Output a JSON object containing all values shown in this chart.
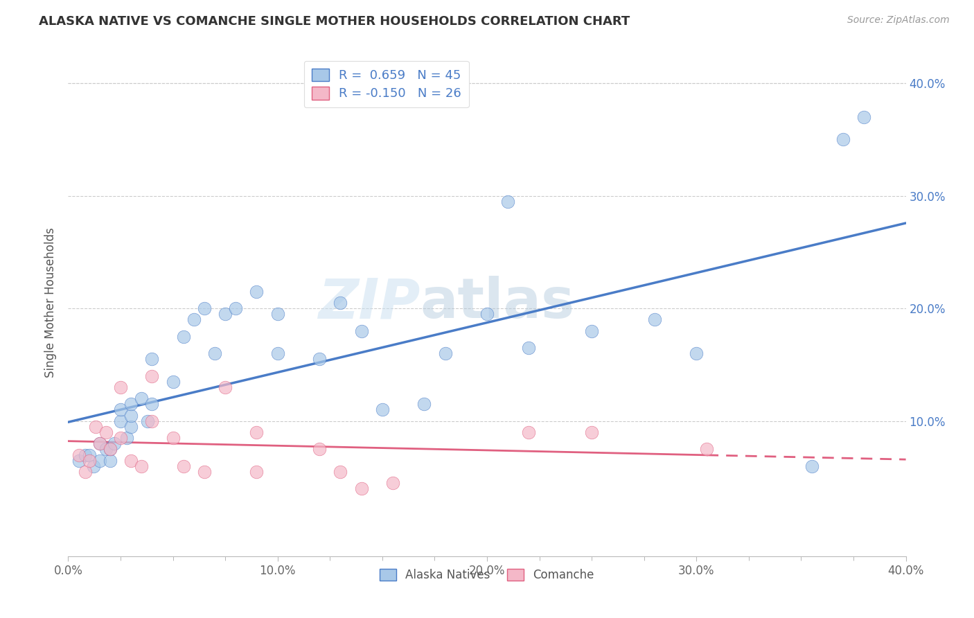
{
  "title": "ALASKA NATIVE VS COMANCHE SINGLE MOTHER HOUSEHOLDS CORRELATION CHART",
  "source": "Source: ZipAtlas.com",
  "ylabel": "Single Mother Households",
  "xlim": [
    0.0,
    0.4
  ],
  "ylim": [
    -0.02,
    0.43
  ],
  "ytick_vals": [
    0.0,
    0.1,
    0.2,
    0.3,
    0.4
  ],
  "alaska_color": "#a8c8e8",
  "alaska_line_color": "#4a7cc7",
  "comanche_color": "#f4b8c8",
  "comanche_line_color": "#e06080",
  "legend_R_alaska": "R =  0.659   N = 45",
  "legend_R_comanche": "R = -0.150   N = 26",
  "watermark_zip": "ZIP",
  "watermark_atlas": "atlas",
  "alaska_scatter_x": [
    0.005,
    0.008,
    0.01,
    0.012,
    0.015,
    0.015,
    0.018,
    0.02,
    0.02,
    0.022,
    0.025,
    0.025,
    0.028,
    0.03,
    0.03,
    0.03,
    0.035,
    0.038,
    0.04,
    0.04,
    0.05,
    0.055,
    0.06,
    0.065,
    0.07,
    0.075,
    0.08,
    0.09,
    0.1,
    0.1,
    0.12,
    0.13,
    0.14,
    0.15,
    0.17,
    0.18,
    0.2,
    0.21,
    0.22,
    0.25,
    0.28,
    0.3,
    0.355,
    0.37,
    0.38
  ],
  "alaska_scatter_y": [
    0.065,
    0.07,
    0.07,
    0.06,
    0.065,
    0.08,
    0.075,
    0.065,
    0.075,
    0.08,
    0.1,
    0.11,
    0.085,
    0.095,
    0.105,
    0.115,
    0.12,
    0.1,
    0.115,
    0.155,
    0.135,
    0.175,
    0.19,
    0.2,
    0.16,
    0.195,
    0.2,
    0.215,
    0.16,
    0.195,
    0.155,
    0.205,
    0.18,
    0.11,
    0.115,
    0.16,
    0.195,
    0.295,
    0.165,
    0.18,
    0.19,
    0.16,
    0.06,
    0.35,
    0.37
  ],
  "comanche_scatter_x": [
    0.005,
    0.008,
    0.01,
    0.013,
    0.015,
    0.018,
    0.02,
    0.025,
    0.025,
    0.03,
    0.035,
    0.04,
    0.04,
    0.05,
    0.055,
    0.065,
    0.075,
    0.09,
    0.09,
    0.12,
    0.13,
    0.14,
    0.155,
    0.22,
    0.25,
    0.305
  ],
  "comanche_scatter_y": [
    0.07,
    0.055,
    0.065,
    0.095,
    0.08,
    0.09,
    0.075,
    0.13,
    0.085,
    0.065,
    0.06,
    0.14,
    0.1,
    0.085,
    0.06,
    0.055,
    0.13,
    0.055,
    0.09,
    0.075,
    0.055,
    0.04,
    0.045,
    0.09,
    0.09,
    0.075
  ]
}
